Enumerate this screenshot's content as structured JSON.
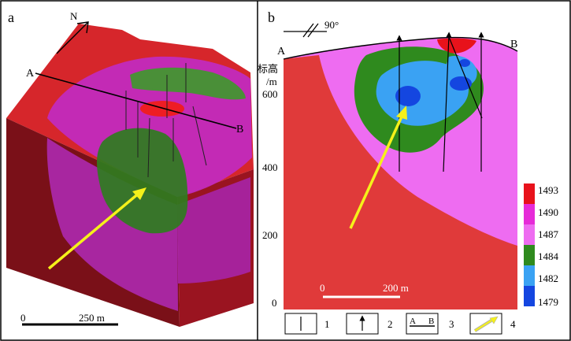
{
  "panel_a": {
    "label": "a",
    "north": "N",
    "section_start": "A",
    "section_end": "B",
    "scale_zero": "0",
    "scale_value": "250 m"
  },
  "panel_b": {
    "label": "b",
    "dip": "90°",
    "section_start": "A",
    "section_end": "B",
    "elevation_label_1": "标高",
    "elevation_label_2": "/m",
    "elevation_ticks": [
      "600",
      "400",
      "200",
      "0"
    ],
    "scale_zero": "0",
    "scale_value": "200 m"
  },
  "color_scale": {
    "values": [
      "1493",
      "1490",
      "1487",
      "1484",
      "1482",
      "1479"
    ],
    "colors": [
      "#e8121b",
      "#e62bd8",
      "#ee6cf1",
      "#2f8a1e",
      "#3aa2f3",
      "#1446e0"
    ]
  },
  "legend": {
    "items": [
      {
        "number": "1",
        "symbol": "borehole"
      },
      {
        "number": "2",
        "symbol": "borehole-arrow"
      },
      {
        "number": "3",
        "symbol": "section-line",
        "text_a": "A",
        "text_b": "B"
      },
      {
        "number": "4",
        "symbol": "flow-arrow"
      }
    ]
  }
}
